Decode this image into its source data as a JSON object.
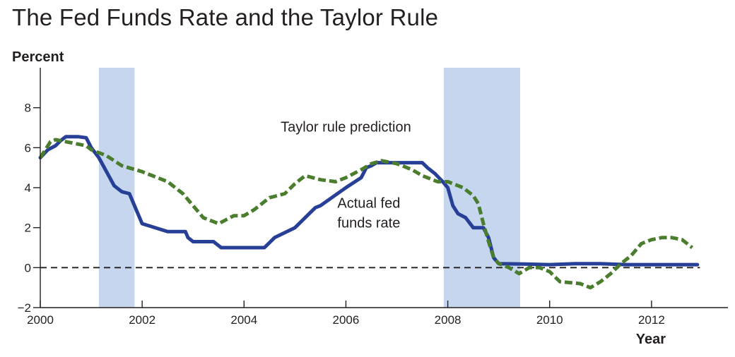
{
  "title": "The Fed Funds Rate and the Taylor Rule",
  "chart_data": {
    "type": "line",
    "ylabel": "Percent",
    "xlabel": "Year",
    "xlim": [
      2000,
      2013.5
    ],
    "ylim": [
      -2,
      10
    ],
    "xticks": [
      2000,
      2002,
      2004,
      2006,
      2008,
      2010,
      2012
    ],
    "yticks": [
      -2,
      0,
      2,
      4,
      6,
      8
    ],
    "grid": false,
    "zero_line": {
      "y": 0,
      "style": "dashed"
    },
    "recessions": [
      [
        2001.15,
        2001.85
      ],
      [
        2007.92,
        2009.42
      ]
    ],
    "colors": {
      "recession": "#c5d6ee",
      "actual": "#273f96",
      "taylor": "#4a7d2d"
    },
    "annotations": [
      {
        "text": "Taylor rule prediction",
        "x": 2006.0,
        "y": 6.8
      },
      {
        "text": "Actual fed",
        "x": 2006.45,
        "y": 3.0
      },
      {
        "text": "funds rate",
        "x": 2006.45,
        "y": 2.0
      }
    ],
    "series": [
      {
        "name": "Actual fed funds rate",
        "style": "solid",
        "x": [
          2000.0,
          2000.15,
          2000.3,
          2000.4,
          2000.5,
          2000.75,
          2000.9,
          2001.0,
          2001.15,
          2001.3,
          2001.45,
          2001.6,
          2001.75,
          2001.9,
          2002.0,
          2002.5,
          2002.8,
          2002.85,
          2002.9,
          2003.0,
          2003.4,
          2003.45,
          2003.55,
          2004.0,
          2004.4,
          2004.6,
          2005.0,
          2005.4,
          2005.5,
          2006.0,
          2006.3,
          2006.4,
          2006.5,
          2006.6,
          2007.0,
          2007.5,
          2007.6,
          2007.75,
          2007.9,
          2008.0,
          2008.1,
          2008.2,
          2008.35,
          2008.5,
          2008.6,
          2008.7,
          2008.8,
          2008.9,
          2009.0,
          2009.5,
          2010.0,
          2010.5,
          2011.0,
          2011.5,
          2012.0,
          2012.5,
          2012.9
        ],
        "y": [
          5.5,
          5.9,
          6.1,
          6.35,
          6.55,
          6.55,
          6.5,
          6.0,
          5.5,
          4.8,
          4.1,
          3.8,
          3.7,
          2.8,
          2.2,
          1.8,
          1.8,
          1.8,
          1.5,
          1.3,
          1.3,
          1.2,
          1.0,
          1.0,
          1.0,
          1.5,
          2.0,
          3.0,
          3.1,
          4.0,
          4.5,
          5.0,
          5.1,
          5.25,
          5.25,
          5.25,
          5.0,
          4.7,
          4.3,
          4.0,
          3.1,
          2.7,
          2.5,
          2.0,
          2.0,
          2.0,
          1.5,
          0.5,
          0.2,
          0.18,
          0.15,
          0.2,
          0.2,
          0.15,
          0.15,
          0.15,
          0.15
        ]
      },
      {
        "name": "Taylor rule prediction",
        "style": "dashed",
        "x": [
          2000.0,
          2000.1,
          2000.2,
          2000.3,
          2000.5,
          2000.7,
          2000.9,
          2001.0,
          2001.3,
          2001.6,
          2002.0,
          2002.5,
          2002.8,
          2003.0,
          2003.2,
          2003.5,
          2003.8,
          2004.0,
          2004.2,
          2004.5,
          2004.8,
          2005.0,
          2005.2,
          2005.5,
          2005.8,
          2006.0,
          2006.3,
          2006.5,
          2006.7,
          2007.0,
          2007.3,
          2007.5,
          2007.8,
          2008.0,
          2008.3,
          2008.5,
          2008.6,
          2008.7,
          2008.8,
          2008.9,
          2009.0,
          2009.2,
          2009.4,
          2009.6,
          2009.8,
          2010.0,
          2010.2,
          2010.4,
          2010.6,
          2010.8,
          2011.0,
          2011.2,
          2011.4,
          2011.6,
          2011.8,
          2012.0,
          2012.2,
          2012.4,
          2012.6,
          2012.8
        ],
        "y": [
          5.5,
          5.9,
          6.3,
          6.4,
          6.3,
          6.2,
          6.1,
          5.9,
          5.6,
          5.1,
          4.8,
          4.3,
          3.7,
          3.1,
          2.5,
          2.2,
          2.6,
          2.6,
          2.9,
          3.5,
          3.7,
          4.2,
          4.6,
          4.4,
          4.3,
          4.5,
          4.9,
          5.2,
          5.35,
          5.2,
          4.9,
          4.6,
          4.3,
          4.3,
          4.0,
          3.6,
          3.2,
          2.2,
          1.3,
          0.5,
          0.2,
          0.0,
          -0.3,
          0.0,
          0.0,
          -0.2,
          -0.7,
          -0.75,
          -0.8,
          -1.0,
          -0.7,
          -0.3,
          0.2,
          0.6,
          1.2,
          1.4,
          1.5,
          1.5,
          1.4,
          1.0
        ]
      }
    ]
  }
}
